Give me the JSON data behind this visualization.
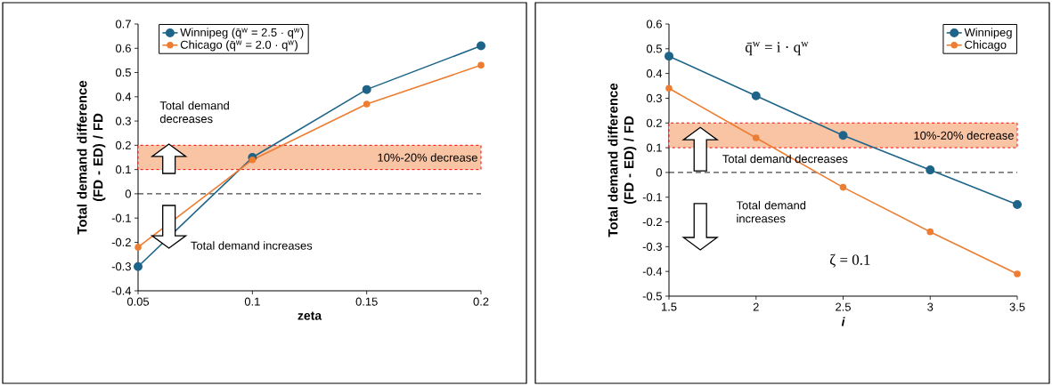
{
  "chart_data": [
    {
      "type": "line",
      "xlabel": "zeta",
      "ylabel": "Total demand difference (FD - ED) / FD",
      "x": [
        0.05,
        0.1,
        0.15,
        0.2
      ],
      "series": [
        {
          "name": "Winnipeg (q̄$^{w}$ = 2.5 · q$^{w}$)",
          "color": "#1d6488",
          "values": [
            -0.3,
            0.15,
            0.43,
            0.61
          ]
        },
        {
          "name": "Chicago (q̄$^{w}$ = 2.0 · q$^{w}$)",
          "color": "#ed7d31",
          "values": [
            -0.22,
            0.14,
            0.37,
            0.53
          ]
        }
      ],
      "xlim": [
        0.05,
        0.2
      ],
      "xticks": [
        0.05,
        0.1,
        0.15,
        0.2
      ],
      "ylim": [
        -0.4,
        0.7
      ],
      "yticks": [
        -0.4,
        -0.3,
        -0.2,
        -0.1,
        0,
        0.1,
        0.2,
        0.3,
        0.4,
        0.5,
        0.6,
        0.7
      ],
      "bands": [
        {
          "axis": "y",
          "from": 0.1,
          "to": 0.2,
          "label": "10%-20% decrease",
          "color": "#f8c4a4"
        }
      ],
      "ref_lines": [
        {
          "axis": "y",
          "value": 0,
          "color": "#000000",
          "line_style": "dashed"
        }
      ],
      "annotations": [
        "Total demand decreases",
        "Total demand increases"
      ],
      "legend": "top left",
      "marker": "circle",
      "line_style": "solid"
    },
    {
      "type": "line",
      "xlabel": "i",
      "ylabel": "Total demand difference (FD - ED) / FD",
      "x": [
        1.5,
        2,
        2.5,
        3,
        3.5
      ],
      "series": [
        {
          "name": "Winnipeg",
          "color": "#1d6488",
          "values": [
            0.47,
            0.31,
            0.15,
            0.01,
            -0.13
          ]
        },
        {
          "name": "Chicago",
          "color": "#ed7d31",
          "values": [
            0.34,
            0.14,
            -0.06,
            -0.24,
            -0.41
          ]
        }
      ],
      "xlim": [
        1.5,
        3.5
      ],
      "xticks": [
        1.5,
        2,
        2.5,
        3,
        3.5
      ],
      "ylim": [
        -0.5,
        0.6
      ],
      "yticks": [
        -0.5,
        -0.4,
        -0.3,
        -0.2,
        -0.1,
        0,
        0.1,
        0.2,
        0.3,
        0.4,
        0.5,
        0.6
      ],
      "bands": [
        {
          "axis": "y",
          "from": 0.1,
          "to": 0.2,
          "label": "10%-20% decrease",
          "color": "#f8c4a4"
        }
      ],
      "ref_lines": [
        {
          "axis": "y",
          "value": 0,
          "color": "#000000",
          "line_style": "dashed"
        }
      ],
      "annotations": [
        "q̄$^{w}$ = i · q$^{w}$",
        "Total demand decreases",
        "Total demand increases",
        "ζ = 0.1"
      ],
      "legend": "top right",
      "marker": "circle",
      "line_style": "solid"
    }
  ]
}
